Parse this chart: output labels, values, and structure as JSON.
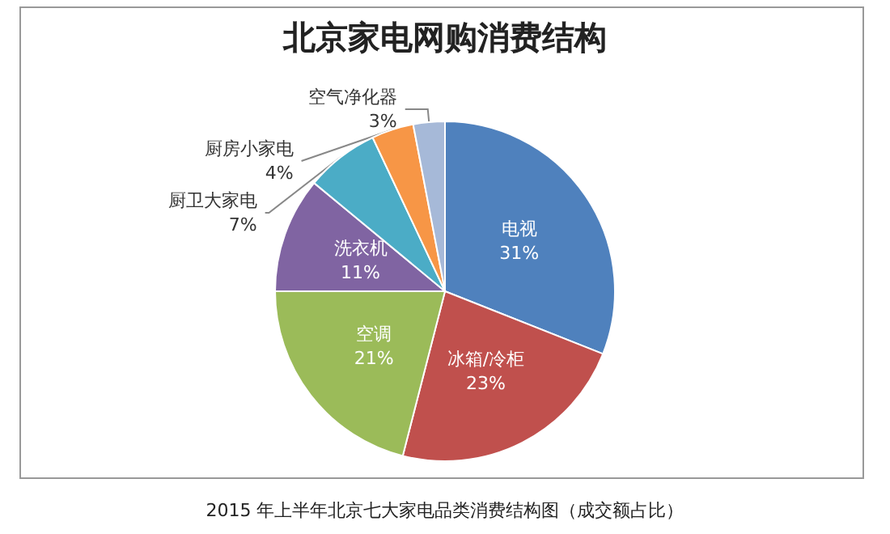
{
  "chart_data": {
    "type": "pie",
    "title": "北京家电网购消费结构",
    "categories": [
      "电视",
      "冰箱/冷柜",
      "空调",
      "洗衣机",
      "厨卫大家电",
      "厨房小家电",
      "空气净化器"
    ],
    "values": [
      31,
      23,
      21,
      11,
      7,
      4,
      3
    ],
    "colors": [
      "#4f81bd",
      "#c0504d",
      "#9bbb59",
      "#8064a2",
      "#4bacc6",
      "#f79646",
      "#a6b9d8"
    ],
    "value_labels": [
      "31%",
      "23%",
      "21%",
      "11%",
      "7%",
      "4%",
      "3%"
    ],
    "legend": false,
    "annotations": [
      "2015 年上半年北京七大家电品类消费结构图（成交额占比）"
    ]
  }
}
